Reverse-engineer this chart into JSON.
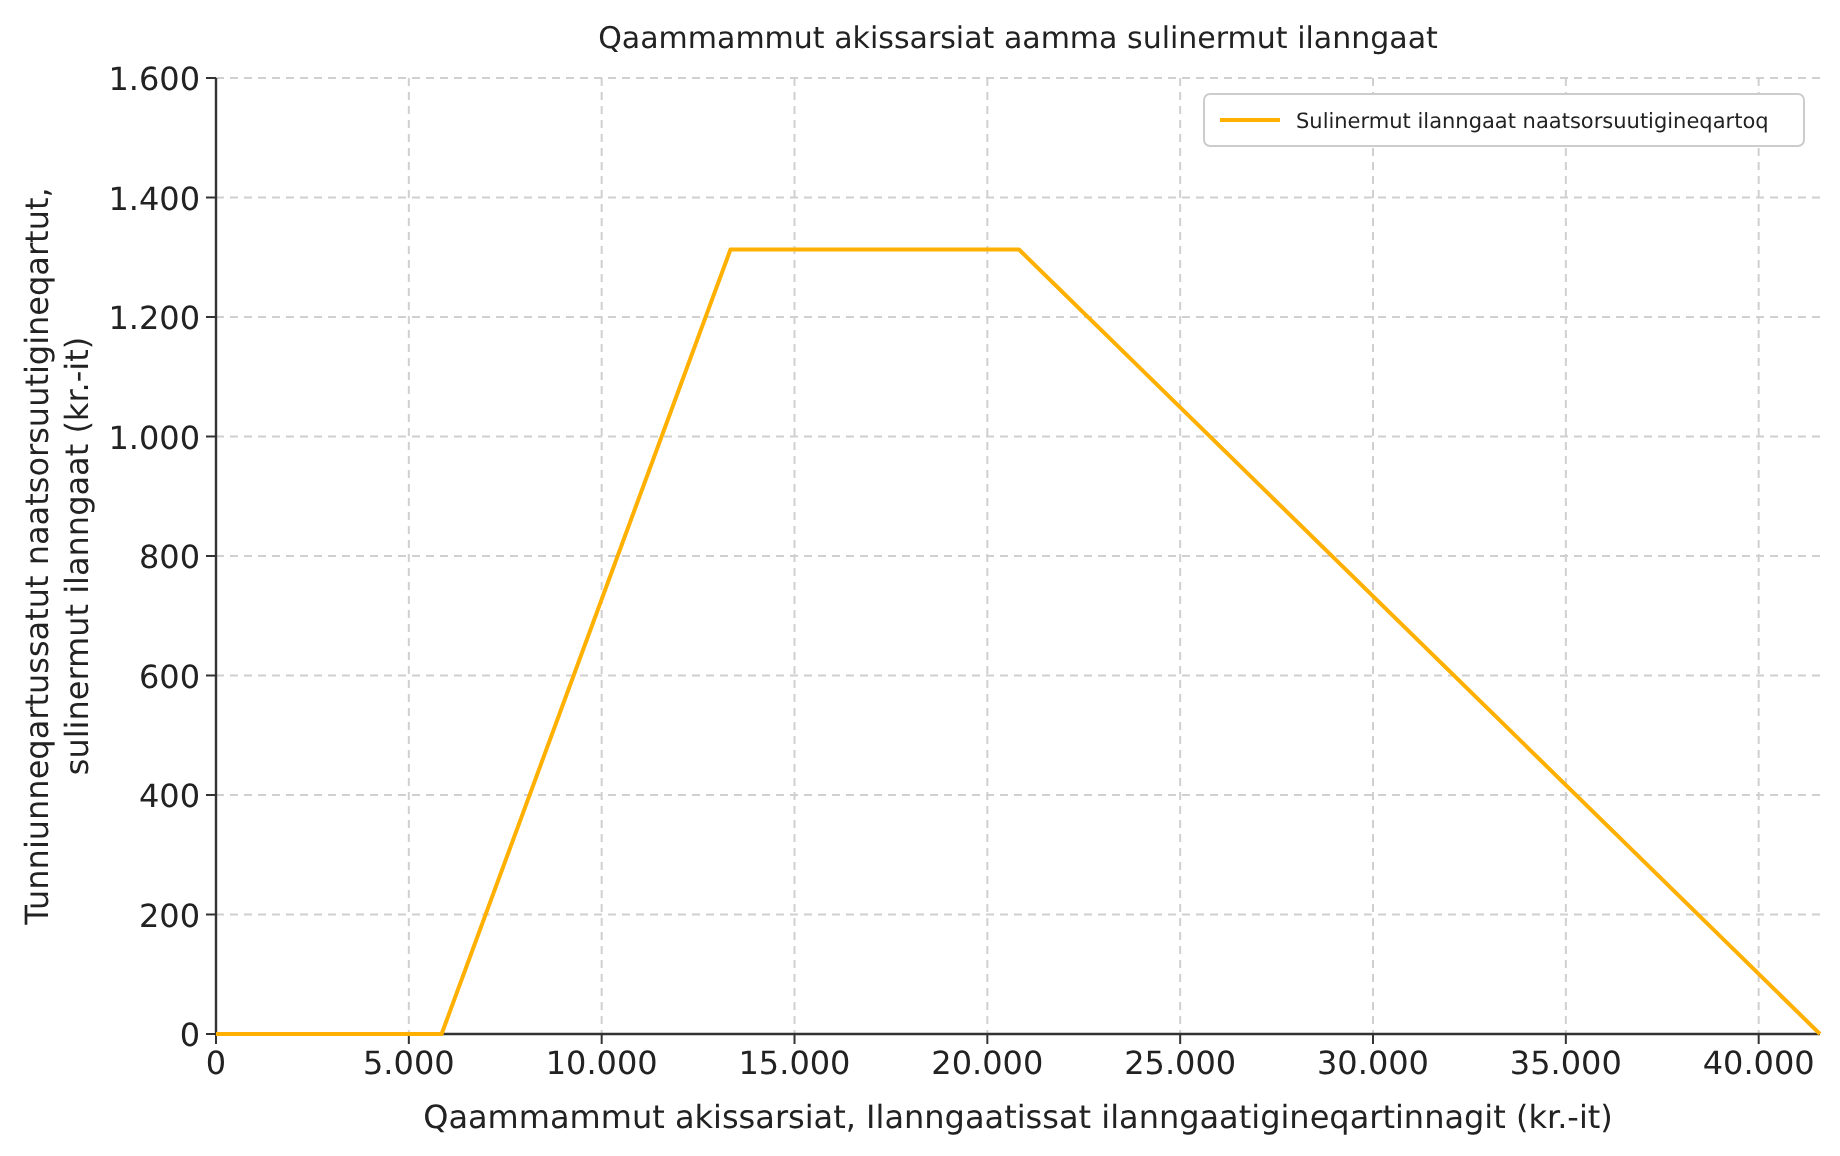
{
  "chart_data": {
    "type": "line",
    "title": "Qaammammut akissarsiat aamma sulinermut ilanngaat",
    "xlabel": "Qaammammut akissarsiat, Ilanngaatissat ilanngaatigineqartinnagit (kr.-it)",
    "ylabel": "Tunniunneqartussatut naatsorsuutigineqartut, sulinermut ilanngaat (kr.-it)",
    "x": [
      0,
      5850,
      13340,
      20820,
      41590
    ],
    "series": [
      {
        "name": "Sulinermut ilanngaat naatsorsuutigineqartoq",
        "color": "#ffb000",
        "values": [
          0,
          0,
          1313,
          1313,
          0
        ]
      }
    ],
    "xlim": [
      0,
      41590
    ],
    "xticks": [
      {
        "value": 0,
        "label": "0"
      },
      {
        "value": 5000,
        "label": "5.000"
      },
      {
        "value": 10000,
        "label": "10.000"
      },
      {
        "value": 15000,
        "label": "15.000"
      },
      {
        "value": 20000,
        "label": "20.000"
      },
      {
        "value": 25000,
        "label": "25.000"
      },
      {
        "value": 30000,
        "label": "30.000"
      },
      {
        "value": 35000,
        "label": "35.000"
      },
      {
        "value": 40000,
        "label": "40.000"
      }
    ],
    "ylim": [
      0,
      1600
    ],
    "yticks": [
      {
        "value": 0,
        "label": "0"
      },
      {
        "value": 200,
        "label": "200"
      },
      {
        "value": 400,
        "label": "400"
      },
      {
        "value": 600,
        "label": "600"
      },
      {
        "value": 800,
        "label": "800"
      },
      {
        "value": 1000,
        "label": "1.000"
      },
      {
        "value": 1200,
        "label": "1.200"
      },
      {
        "value": 1400,
        "label": "1.400"
      },
      {
        "value": 1600,
        "label": "1.600"
      }
    ],
    "grid": true,
    "legend": "top right",
    "line_style": "solid",
    "marker": "none"
  }
}
